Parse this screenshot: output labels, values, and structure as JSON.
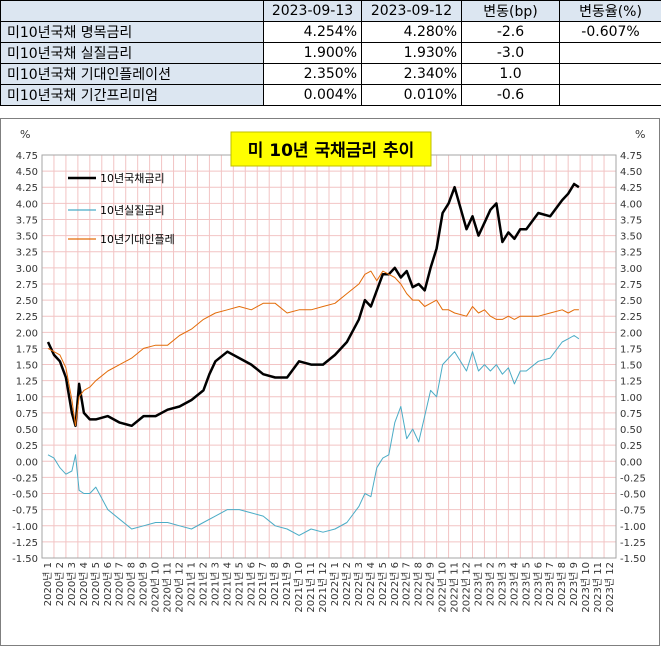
{
  "table": {
    "headers": [
      "",
      "2023-09-13",
      "2023-09-12",
      "변동(bp)",
      "변동율(%)"
    ],
    "rows": [
      {
        "label": "미10년국채 명목금리",
        "d1": "4.254%",
        "d2": "4.280%",
        "bp": "-2.6",
        "pct": "-0.607%"
      },
      {
        "label": "미10년국채 실질금리",
        "d1": "1.900%",
        "d2": "1.930%",
        "bp": "-3.0",
        "pct": ""
      },
      {
        "label": "미10년국채 기대인플레이션",
        "d1": "2.350%",
        "d2": "2.340%",
        "bp": "1.0",
        "pct": ""
      },
      {
        "label": "미10년국채 기간프리미엄",
        "d1": "0.004%",
        "d2": "0.010%",
        "bp": "-0.6",
        "pct": ""
      }
    ]
  },
  "colors": {
    "nominal": "#000000",
    "real": "#4bacc6",
    "inflation": "#e36c09",
    "title_bg": "#ffff00",
    "grid": "#f2c4c4",
    "header_bg": "#dce6f1"
  },
  "chart_data": {
    "type": "line",
    "title": "미 10년  국채금리 추이",
    "y_unit_left": "%",
    "y_unit_right": "%",
    "ylim": [
      -1.5,
      4.75
    ],
    "y_step": 0.25,
    "y_ticks": [
      "4.75",
      "4.50",
      "4.25",
      "4.00",
      "3.75",
      "3.50",
      "3.25",
      "3.00",
      "2.75",
      "2.50",
      "2.25",
      "2.00",
      "1.75",
      "1.50",
      "1.25",
      "1.00",
      "0.75",
      "0.50",
      "0.25",
      "0.00",
      "-0.25",
      "-0.50",
      "-0.75",
      "-1.00",
      "-1.25",
      "-1.50"
    ],
    "x_ticks": [
      "2020년 1",
      "2020년 2",
      "2020년 3",
      "2020년 4",
      "2020년 5",
      "2020년 6",
      "2020년 7",
      "2020년 8",
      "2020년 9",
      "2020년 10",
      "2020년 11",
      "2020년 12",
      "2021년 1",
      "2021년 2",
      "2021년 3",
      "2021년 4",
      "2021년 5",
      "2021년 6",
      "2021년 7",
      "2021년 8",
      "2021년 9",
      "2021년 10",
      "2021년 11",
      "2021년 12",
      "2022년 1",
      "2022년 2",
      "2022년 3",
      "2022년 4",
      "2022년 5",
      "2022년 6",
      "2022년 7",
      "2022년 8",
      "2022년 9",
      "2022년 10",
      "2022년 11",
      "2022년 12",
      "2023년 1",
      "2023년 2",
      "2023년 3",
      "2023년 4",
      "2023년 5",
      "2023년 6",
      "2023년 7",
      "2023년 8",
      "2023년 9",
      "2023년 10",
      "2023년 11",
      "2023년 12"
    ],
    "x_unit": "month",
    "grid": true,
    "legend_position": "top-left",
    "series": [
      {
        "name": "10년국채금리",
        "color_key": "nominal",
        "x": [
          0,
          0.5,
          1,
          1.5,
          2,
          2.3,
          2.6,
          3,
          3.5,
          4,
          5,
          6,
          7,
          8,
          9,
          10,
          11,
          12,
          13,
          13.5,
          14,
          15,
          16,
          17,
          18,
          19,
          20,
          21,
          22,
          23,
          24,
          25,
          26,
          26.5,
          27,
          27.5,
          28,
          28.5,
          29,
          29.5,
          30,
          30.5,
          31,
          31.5,
          32,
          32.5,
          33,
          33.5,
          34,
          35,
          35.5,
          36,
          36.5,
          37,
          37.5,
          38,
          38.5,
          39,
          39.5,
          40,
          41,
          42,
          43,
          43.5,
          44,
          44.4
        ],
        "y": [
          1.85,
          1.65,
          1.55,
          1.3,
          0.75,
          0.55,
          1.2,
          0.75,
          0.65,
          0.65,
          0.7,
          0.6,
          0.55,
          0.7,
          0.7,
          0.8,
          0.85,
          0.95,
          1.1,
          1.35,
          1.55,
          1.7,
          1.6,
          1.5,
          1.35,
          1.3,
          1.3,
          1.55,
          1.5,
          1.5,
          1.65,
          1.85,
          2.2,
          2.5,
          2.4,
          2.65,
          2.9,
          2.9,
          3.0,
          2.85,
          2.95,
          2.7,
          2.75,
          2.65,
          3.0,
          3.3,
          3.85,
          4.0,
          4.25,
          3.6,
          3.8,
          3.5,
          3.7,
          3.9,
          4.0,
          3.4,
          3.55,
          3.45,
          3.6,
          3.6,
          3.85,
          3.8,
          4.05,
          4.15,
          4.3,
          4.25
        ]
      },
      {
        "name": "10년실질금리",
        "color_key": "real",
        "x": [
          0,
          0.5,
          1,
          1.5,
          2,
          2.3,
          2.6,
          3,
          3.5,
          4,
          5,
          6,
          7,
          8,
          9,
          10,
          11,
          12,
          13,
          14,
          15,
          16,
          17,
          18,
          19,
          20,
          21,
          22,
          23,
          24,
          25,
          26,
          26.5,
          27,
          27.5,
          28,
          28.5,
          29,
          29.5,
          30,
          30.5,
          31,
          31.5,
          32,
          32.5,
          33,
          33.5,
          34,
          35,
          35.5,
          36,
          36.5,
          37,
          37.5,
          38,
          38.5,
          39,
          39.5,
          40,
          41,
          42,
          43,
          43.5,
          44,
          44.4
        ],
        "y": [
          0.1,
          0.05,
          -0.1,
          -0.2,
          -0.15,
          0.1,
          -0.45,
          -0.5,
          -0.5,
          -0.4,
          -0.75,
          -0.9,
          -1.05,
          -1.0,
          -0.95,
          -0.95,
          -1.0,
          -1.05,
          -0.95,
          -0.85,
          -0.75,
          -0.75,
          -0.8,
          -0.85,
          -1.0,
          -1.05,
          -1.15,
          -1.05,
          -1.1,
          -1.05,
          -0.95,
          -0.7,
          -0.5,
          -0.55,
          -0.1,
          0.05,
          0.1,
          0.6,
          0.85,
          0.35,
          0.5,
          0.3,
          0.7,
          1.1,
          1.0,
          1.5,
          1.6,
          1.7,
          1.4,
          1.7,
          1.4,
          1.5,
          1.4,
          1.5,
          1.35,
          1.45,
          1.2,
          1.4,
          1.4,
          1.55,
          1.6,
          1.85,
          1.9,
          1.95,
          1.9
        ]
      },
      {
        "name": "10년기대인플레",
        "color_key": "inflation",
        "x": [
          0,
          0.5,
          1,
          1.5,
          2,
          2.3,
          2.6,
          3,
          3.5,
          4,
          5,
          6,
          7,
          8,
          9,
          10,
          11,
          12,
          13,
          14,
          15,
          16,
          17,
          18,
          19,
          20,
          21,
          22,
          23,
          24,
          25,
          26,
          26.5,
          27,
          27.5,
          28,
          28.5,
          29,
          29.5,
          30,
          30.5,
          31,
          31.5,
          32,
          32.5,
          33,
          33.5,
          34,
          35,
          35.5,
          36,
          36.5,
          37,
          37.5,
          38,
          38.5,
          39,
          39.5,
          40,
          41,
          42,
          43,
          43.5,
          44,
          44.4
        ],
        "y": [
          1.75,
          1.7,
          1.65,
          1.45,
          0.95,
          0.55,
          1.0,
          1.1,
          1.15,
          1.25,
          1.4,
          1.5,
          1.6,
          1.75,
          1.8,
          1.8,
          1.95,
          2.05,
          2.2,
          2.3,
          2.35,
          2.4,
          2.35,
          2.45,
          2.45,
          2.3,
          2.35,
          2.35,
          2.4,
          2.45,
          2.6,
          2.75,
          2.9,
          2.95,
          2.8,
          2.95,
          2.9,
          2.85,
          2.75,
          2.6,
          2.5,
          2.5,
          2.4,
          2.45,
          2.5,
          2.35,
          2.35,
          2.3,
          2.25,
          2.4,
          2.3,
          2.35,
          2.25,
          2.2,
          2.2,
          2.25,
          2.2,
          2.25,
          2.25,
          2.25,
          2.3,
          2.35,
          2.3,
          2.35,
          2.35
        ]
      }
    ]
  }
}
